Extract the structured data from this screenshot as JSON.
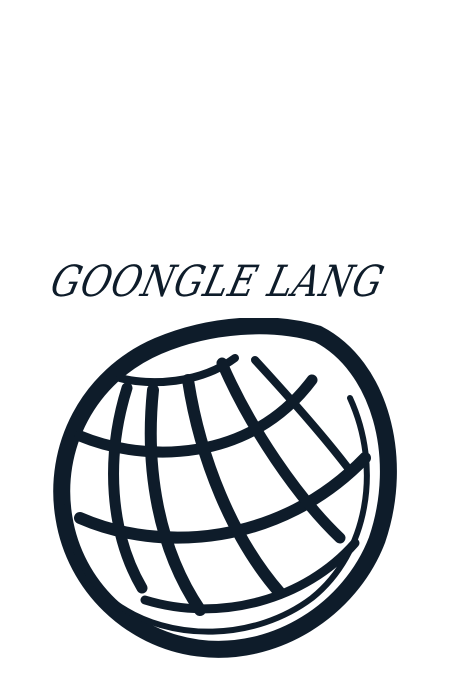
{
  "brand": {
    "name": "GOONGLE LANG"
  },
  "logo": {
    "icon": "globe-icon",
    "color": "#0e1c2a",
    "background": "#ffffff"
  }
}
